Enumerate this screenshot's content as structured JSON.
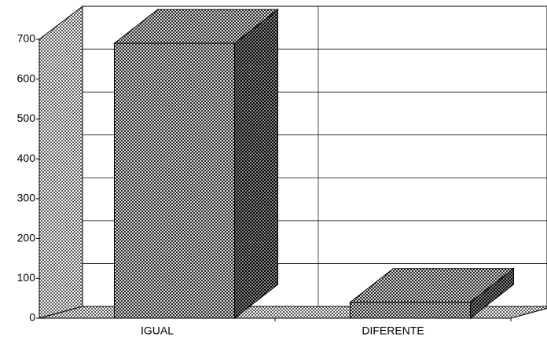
{
  "chart_data": {
    "type": "bar3d",
    "categories": [
      "IGUAL",
      "DIFERENTE"
    ],
    "values": [
      690,
      40
    ],
    "ylim": [
      0,
      700
    ],
    "yticks": [
      0,
      100,
      200,
      300,
      400,
      500,
      600,
      700
    ],
    "grid": true
  }
}
